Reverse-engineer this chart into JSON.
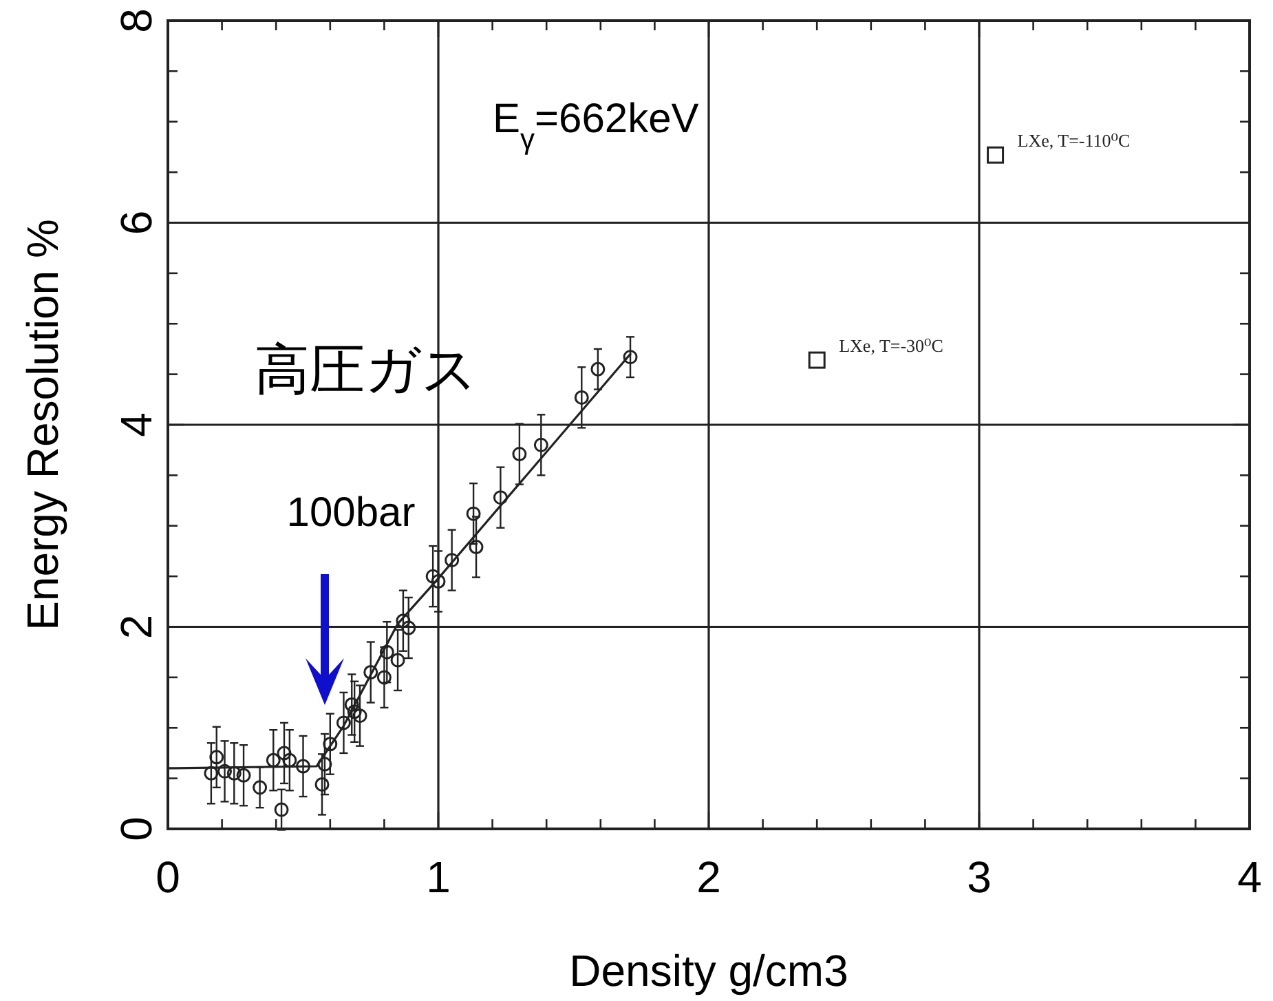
{
  "chart_data": {
    "type": "scatter",
    "xlabel": "Density g/cm3",
    "ylabel": "Energy Resolution %",
    "xlim": [
      0,
      4
    ],
    "ylim": [
      0,
      8
    ],
    "xticks": [
      0,
      {
        "value": 0.2,
        "label": null
      },
      {
        "value": 0.4,
        "label": null
      },
      {
        "value": 0.6,
        "label": null
      },
      {
        "value": 0.8,
        "label": null
      },
      1,
      {
        "value": 1.2,
        "label": null
      },
      {
        "value": 1.4,
        "label": null
      },
      {
        "value": 1.6,
        "label": null
      },
      {
        "value": 1.8,
        "label": null
      },
      2,
      {
        "value": 2.2,
        "label": null
      },
      {
        "value": 2.4,
        "label": null
      },
      {
        "value": 2.6,
        "label": null
      },
      {
        "value": 2.8,
        "label": null
      },
      3,
      {
        "value": 3.2,
        "label": null
      },
      {
        "value": 3.4,
        "label": null
      },
      {
        "value": 3.6,
        "label": null
      },
      {
        "value": 3.8,
        "label": null
      },
      4
    ],
    "yticks": [
      0,
      {
        "value": 0.5,
        "label": null
      },
      {
        "value": 1,
        "label": null
      },
      {
        "value": 1.5,
        "label": null
      },
      2,
      {
        "value": 2.5,
        "label": null
      },
      {
        "value": 3,
        "label": null
      },
      {
        "value": 3.5,
        "label": null
      },
      4,
      {
        "value": 4.5,
        "label": null
      },
      {
        "value": 5,
        "label": null
      },
      {
        "value": 5.5,
        "label": null
      },
      6,
      {
        "value": 6.5,
        "label": null
      },
      {
        "value": 7,
        "label": null
      },
      {
        "value": 7.5,
        "label": null
      },
      8
    ],
    "grid": true,
    "series": [
      {
        "color": "#222222",
        "marker": "circle",
        "x": [
          0.16,
          0.18,
          0.21,
          0.245,
          0.28,
          0.34,
          0.39,
          0.42,
          0.43,
          0.45,
          0.5,
          0.57,
          0.58,
          0.6,
          0.65,
          0.68,
          0.69,
          0.71,
          0.75,
          0.8,
          0.81,
          0.85,
          0.87,
          0.89,
          0.98,
          1.0,
          1.05,
          1.13,
          1.14,
          1.23,
          1.3,
          1.38,
          1.53,
          1.59,
          1.71
        ],
        "values": [
          0.55,
          0.71,
          0.57,
          0.55,
          0.53,
          0.41,
          0.68,
          0.19,
          0.75,
          0.68,
          0.62,
          0.44,
          0.64,
          0.84,
          1.05,
          1.23,
          1.16,
          1.12,
          1.55,
          1.5,
          1.75,
          1.67,
          2.06,
          1.99,
          2.5,
          2.45,
          2.66,
          3.12,
          2.79,
          3.28,
          3.71,
          3.8,
          4.27,
          4.55,
          4.67
        ],
        "errors": [
          0.3,
          0.3,
          0.3,
          0.3,
          0.3,
          0.2,
          0.3,
          0.2,
          0.3,
          0.3,
          0.3,
          0.3,
          0.3,
          0.3,
          0.3,
          0.3,
          0.3,
          0.3,
          0.3,
          0.3,
          0.3,
          0.3,
          0.3,
          0.3,
          0.3,
          0.3,
          0.3,
          0.3,
          0.3,
          0.3,
          0.3,
          0.3,
          0.3,
          0.2,
          0.2
        ]
      },
      {
        "type": "line",
        "color": "#222222",
        "marker": "none",
        "line_style": "solid",
        "x": [
          0,
          0.55,
          0.65,
          0.85,
          1.0,
          1.71
        ],
        "values": [
          0.6,
          0.62,
          1.02,
          2.03,
          2.48,
          4.7
        ]
      },
      {
        "color": "#222222",
        "marker": "square",
        "name": "LXe, T=-110⁰C",
        "x": [
          3.06
        ],
        "values": [
          6.67
        ]
      },
      {
        "color": "#222222",
        "marker": "square",
        "name": "LXe, T=-30⁰C",
        "x": [
          2.4
        ],
        "values": [
          4.64
        ]
      }
    ],
    "annotations": [
      "E$_{γ}$=662keV",
      "高圧ガス",
      "100bar"
    ]
  }
}
